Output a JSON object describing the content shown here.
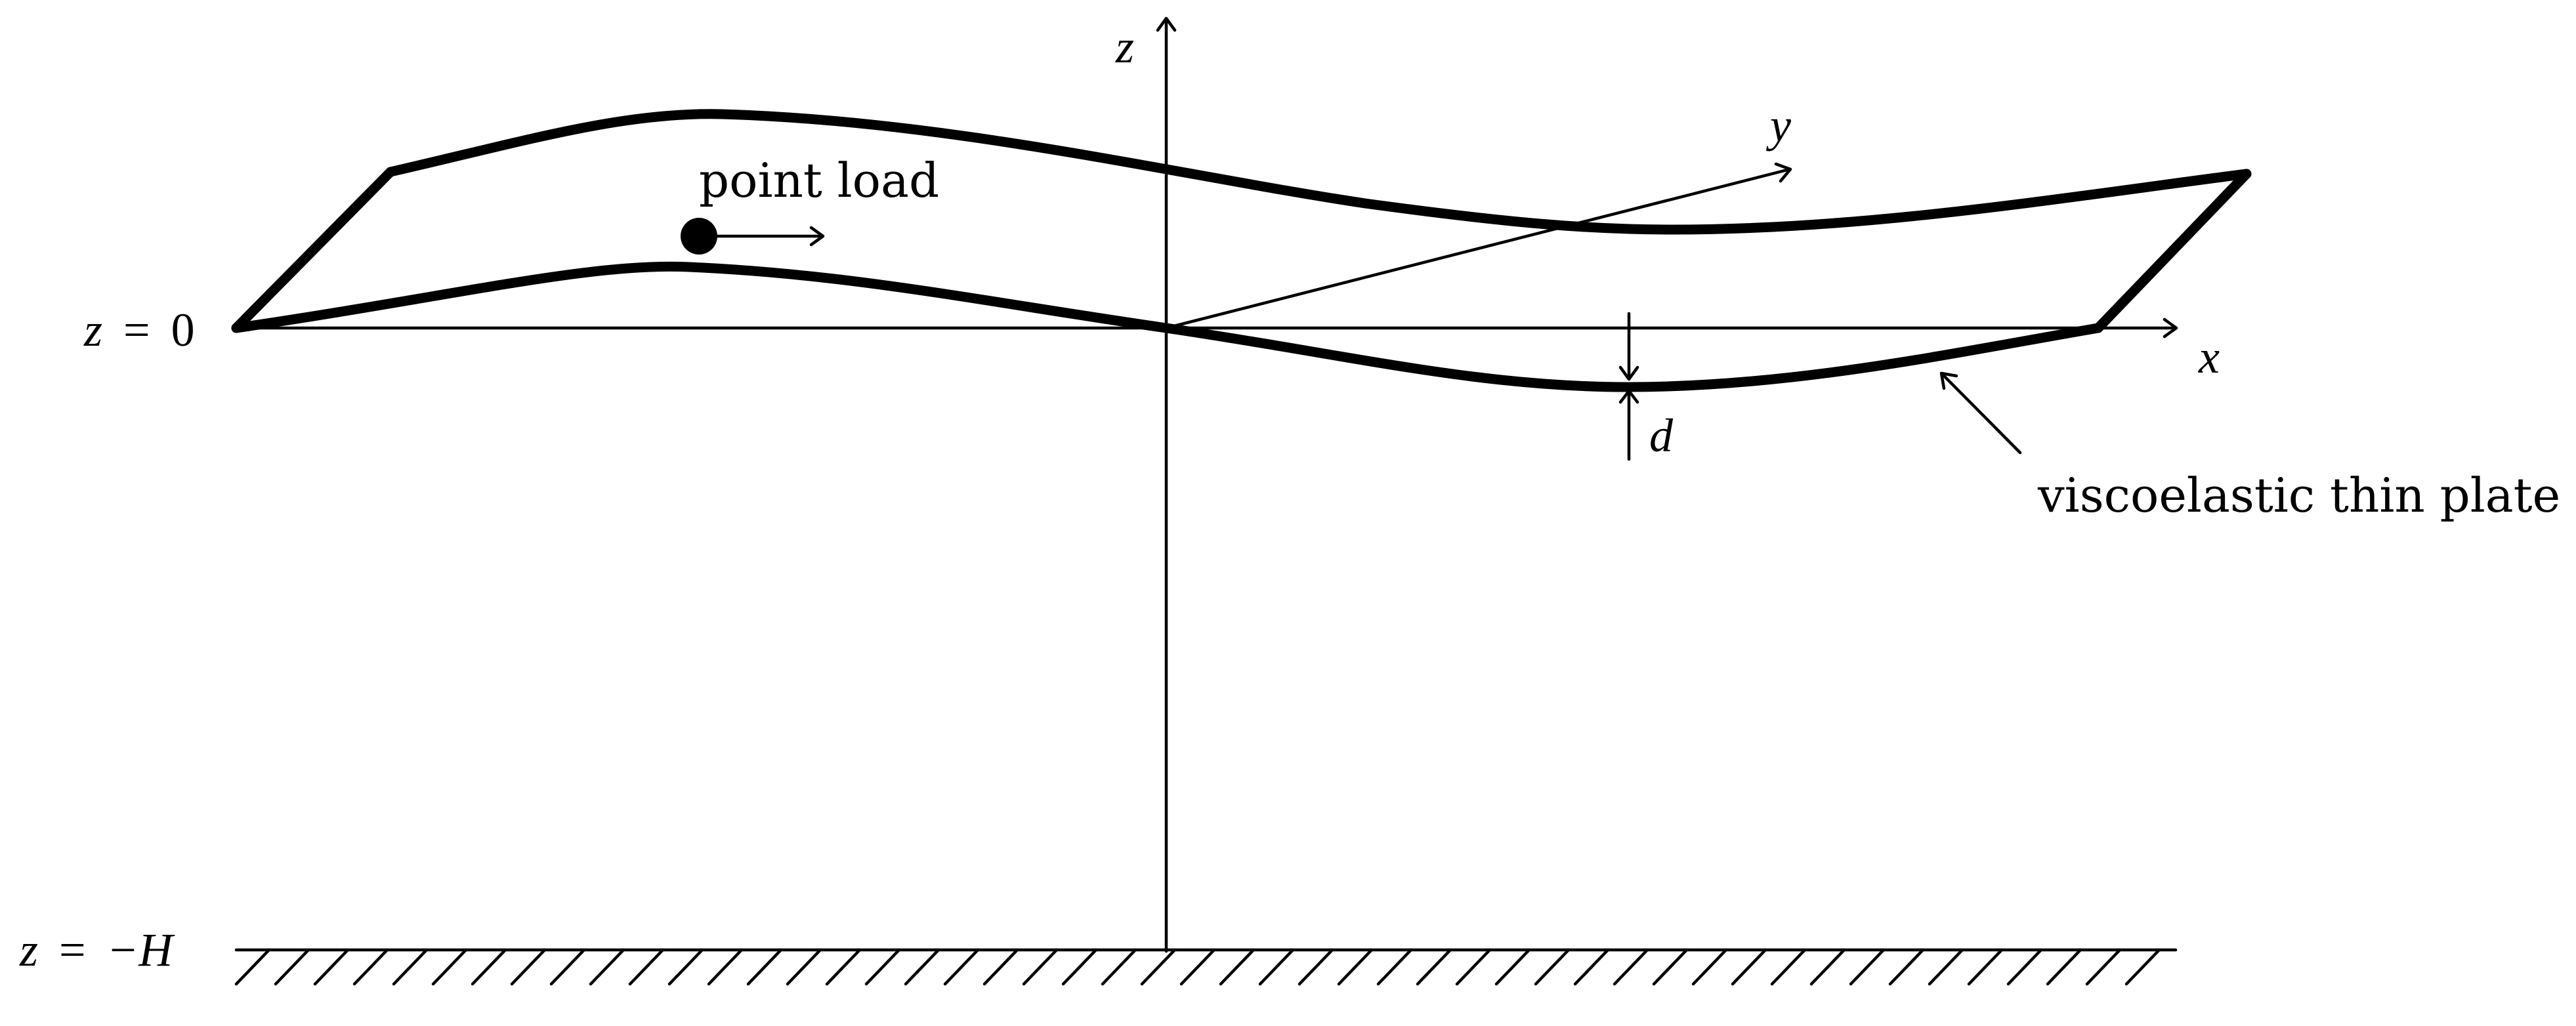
{
  "labels": {
    "z_axis": "z",
    "x_axis": "x",
    "y_axis": "y",
    "plate_level": {
      "var": "z",
      "rel": "=",
      "val": "0"
    },
    "bottom_level": {
      "var": "z",
      "rel": "=",
      "val": "−H"
    },
    "point_load": "point load",
    "thickness": "d",
    "plate": "viscoelastic thin plate"
  }
}
